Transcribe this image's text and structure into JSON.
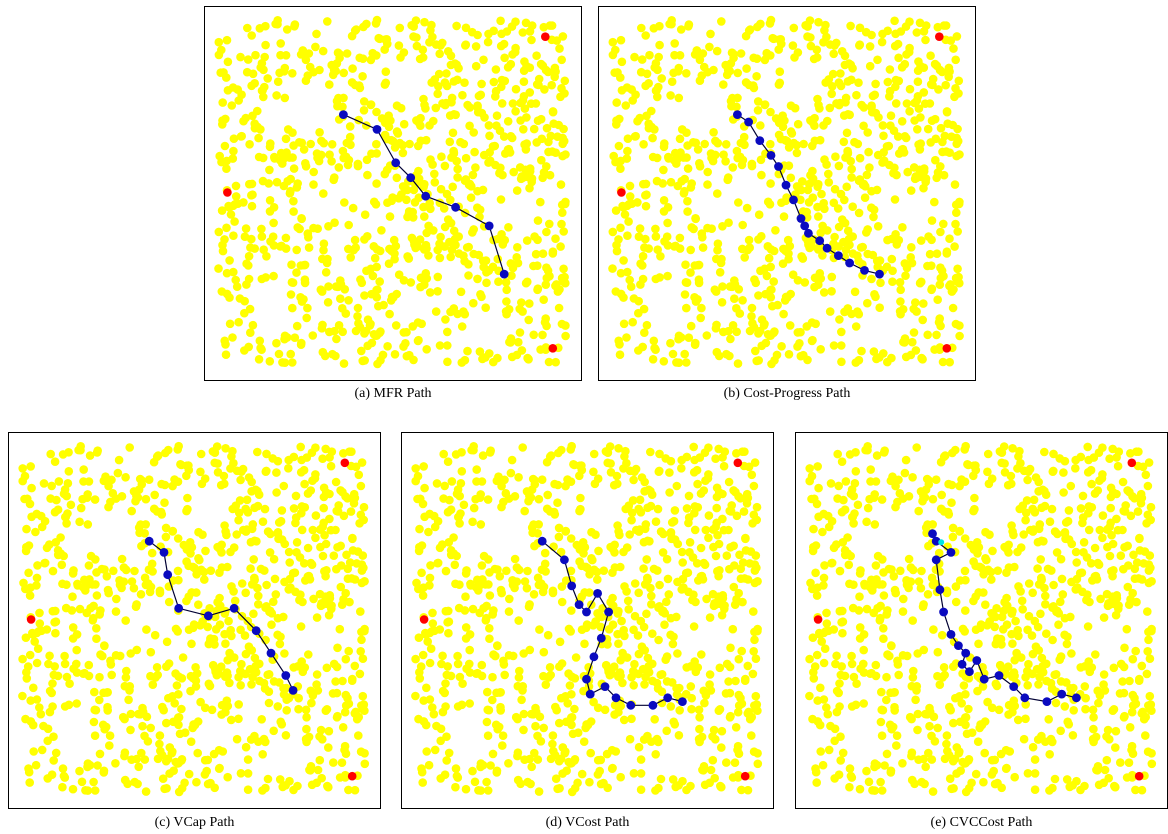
{
  "figure": {
    "panels": [
      {
        "caption": "(a)  MFR Path",
        "path": [
          [
            0.37,
            0.29
          ],
          [
            0.46,
            0.33
          ],
          [
            0.51,
            0.42
          ],
          [
            0.55,
            0.46
          ],
          [
            0.59,
            0.51
          ],
          [
            0.67,
            0.54
          ],
          [
            0.76,
            0.59
          ],
          [
            0.8,
            0.72
          ]
        ]
      },
      {
        "caption": "(b)  Cost-Progress Path",
        "path": [
          [
            0.37,
            0.29
          ],
          [
            0.4,
            0.31
          ],
          [
            0.43,
            0.36
          ],
          [
            0.46,
            0.4
          ],
          [
            0.48,
            0.43
          ],
          [
            0.5,
            0.48
          ],
          [
            0.52,
            0.52
          ],
          [
            0.54,
            0.57
          ],
          [
            0.55,
            0.59
          ],
          [
            0.56,
            0.61
          ],
          [
            0.59,
            0.63
          ],
          [
            0.61,
            0.65
          ],
          [
            0.64,
            0.67
          ],
          [
            0.67,
            0.69
          ],
          [
            0.71,
            0.71
          ],
          [
            0.75,
            0.72
          ]
        ]
      },
      {
        "caption": "(c)  VCap Path",
        "path": [
          [
            0.38,
            0.29
          ],
          [
            0.42,
            0.32
          ],
          [
            0.43,
            0.38
          ],
          [
            0.46,
            0.47
          ],
          [
            0.54,
            0.49
          ],
          [
            0.61,
            0.47
          ],
          [
            0.67,
            0.53
          ],
          [
            0.71,
            0.59
          ],
          [
            0.75,
            0.65
          ],
          [
            0.77,
            0.69
          ]
        ]
      },
      {
        "caption": "(d)  VCost Path",
        "path": [
          [
            0.38,
            0.29
          ],
          [
            0.44,
            0.34
          ],
          [
            0.46,
            0.41
          ],
          [
            0.48,
            0.46
          ],
          [
            0.5,
            0.48
          ],
          [
            0.53,
            0.43
          ],
          [
            0.56,
            0.48
          ],
          [
            0.54,
            0.55
          ],
          [
            0.52,
            0.6
          ],
          [
            0.5,
            0.66
          ],
          [
            0.51,
            0.7
          ],
          [
            0.55,
            0.68
          ],
          [
            0.58,
            0.71
          ],
          [
            0.62,
            0.73
          ],
          [
            0.68,
            0.73
          ],
          [
            0.72,
            0.71
          ],
          [
            0.76,
            0.72
          ]
        ]
      },
      {
        "caption": "(e)  CVCCost Path",
        "path": [
          [
            0.37,
            0.27
          ],
          [
            0.38,
            0.29
          ],
          [
            0.42,
            0.32
          ],
          [
            0.38,
            0.34
          ],
          [
            0.39,
            0.42
          ],
          [
            0.4,
            0.48
          ],
          [
            0.42,
            0.54
          ],
          [
            0.44,
            0.57
          ],
          [
            0.46,
            0.59
          ],
          [
            0.45,
            0.62
          ],
          [
            0.47,
            0.64
          ],
          [
            0.49,
            0.61
          ],
          [
            0.51,
            0.66
          ],
          [
            0.55,
            0.65
          ],
          [
            0.59,
            0.68
          ],
          [
            0.62,
            0.71
          ],
          [
            0.68,
            0.72
          ],
          [
            0.72,
            0.7
          ],
          [
            0.76,
            0.71
          ]
        ]
      }
    ],
    "red_nodes": [
      [
        0.91,
        0.08
      ],
      [
        0.06,
        0.5
      ],
      [
        0.93,
        0.92
      ]
    ],
    "extra_marker": {
      "panel": 4,
      "point": [
        0.38,
        0.285
      ]
    }
  },
  "colors": {
    "background": "#ffffff",
    "border": "#000000",
    "node_fill": "#ffff00",
    "path_node": "#0a0abf",
    "path_line": "#000033",
    "special_node": "#ff0000",
    "marker": "#00e5e5"
  }
}
